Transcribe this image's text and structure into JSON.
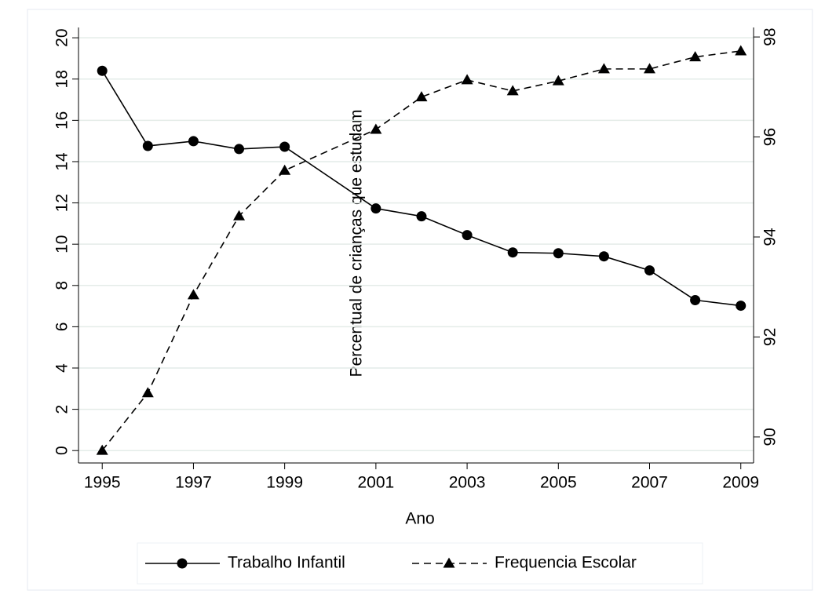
{
  "chart_data": {
    "type": "line",
    "xlabel": "Ano",
    "y2label": "Percentual de crianças que estudam",
    "x": [
      1995,
      1996,
      1997,
      1998,
      1999,
      2001,
      2002,
      2003,
      2004,
      2005,
      2006,
      2007,
      2008,
      2009
    ],
    "series": [
      {
        "name": "Trabalho Infantil",
        "color": "#000000",
        "style": "solid",
        "marker": "circle",
        "axis": "y",
        "values": [
          18.4,
          14.76,
          14.99,
          14.61,
          14.72,
          11.73,
          11.35,
          10.44,
          9.6,
          9.56,
          9.41,
          8.73,
          7.29,
          7.02
        ]
      },
      {
        "name": "Frequencia Escolar",
        "color": "#000000",
        "style": "dashed",
        "marker": "triangle",
        "axis": "y2",
        "values": [
          89.73,
          90.88,
          92.84,
          94.42,
          95.33,
          96.15,
          96.8,
          97.14,
          96.92,
          97.12,
          97.36,
          97.36,
          97.6,
          97.72
        ]
      }
    ],
    "xlim": [
      1994.48,
      2009.28
    ],
    "xticks": [
      1995,
      1997,
      1999,
      2001,
      2003,
      2005,
      2007,
      2009
    ],
    "ylim": [
      -0.6,
      20.5
    ],
    "yticks": [
      0,
      2,
      4,
      6,
      8,
      10,
      12,
      14,
      16,
      18,
      20
    ],
    "y2lim": [
      89.48,
      98.19
    ],
    "y2ticks": [
      90,
      92,
      94,
      96,
      98
    ],
    "grid": true,
    "legend": "bottom"
  }
}
